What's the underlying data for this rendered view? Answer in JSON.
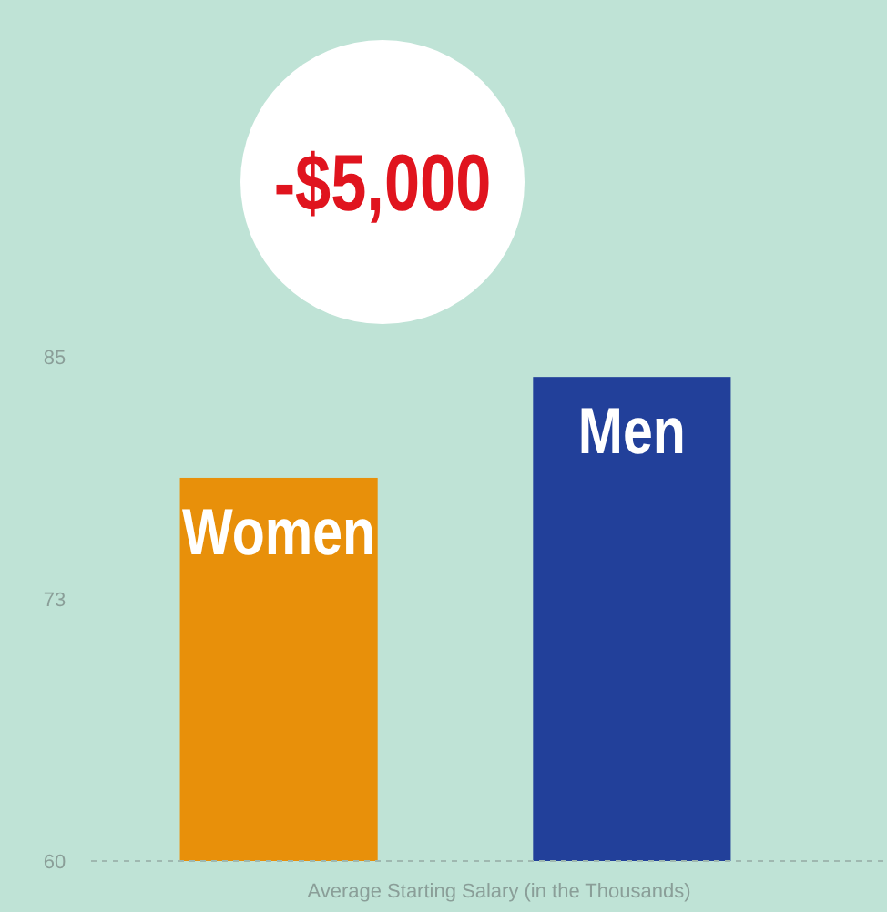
{
  "chart_data": {
    "type": "bar",
    "categories": [
      "Women",
      "Men"
    ],
    "colors": [
      "#e8900a",
      "#22409a"
    ],
    "values": [
      79,
      84
    ],
    "ylim": [
      60,
      85
    ],
    "yticks": [
      60,
      73,
      85
    ],
    "xlabel": "Average Starting Salary (in the Thousands)",
    "annotations": [
      "-$5,000"
    ],
    "grid": false
  }
}
